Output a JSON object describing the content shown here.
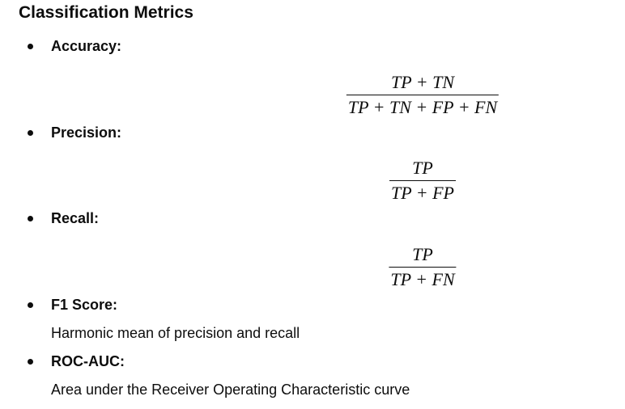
{
  "title": "Classification Metrics",
  "items": [
    {
      "label": "Accuracy:",
      "formula": {
        "numerator": "TP + TN",
        "denominator": "TP + TN + FP + FN"
      }
    },
    {
      "label": "Precision:",
      "formula": {
        "numerator": "TP",
        "denominator": "TP + FP"
      }
    },
    {
      "label": "Recall:",
      "formula": {
        "numerator": "TP",
        "denominator": "TP + FN"
      }
    },
    {
      "label": "F1 Score:",
      "description": "Harmonic mean of precision and recall"
    },
    {
      "label": "ROC-AUC:",
      "description": "Area under the Receiver Operating Characteristic curve"
    }
  ]
}
